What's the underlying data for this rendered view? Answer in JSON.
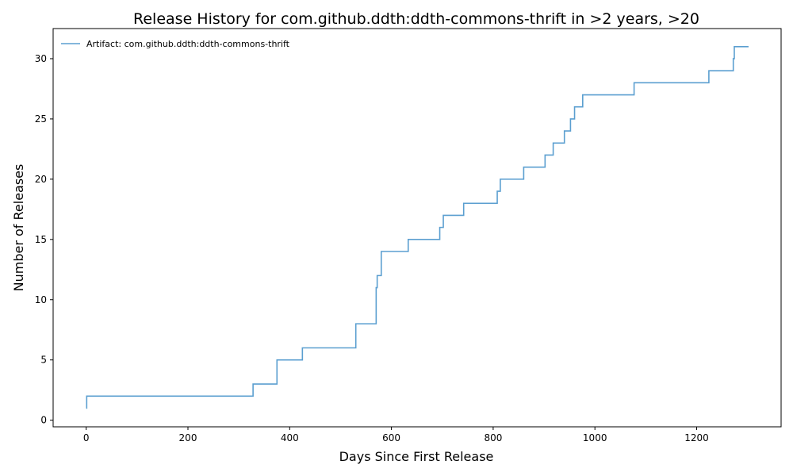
{
  "chart_data": {
    "type": "line",
    "drawstyle": "steps-post",
    "title": "Release History for com.github.ddth:ddth-commons-thrift in >2 years, >20",
    "xlabel": "Days Since First Release",
    "ylabel": "Number of Releases",
    "xlim": [
      -65,
      1366
    ],
    "ylim": [
      -0.55,
      32.5
    ],
    "xticks": [
      0,
      200,
      400,
      600,
      800,
      1000,
      1200
    ],
    "yticks": [
      0,
      5,
      10,
      15,
      20,
      25,
      30
    ],
    "grid": false,
    "legend_position": "top-left",
    "series": [
      {
        "name": "Artifact: com.github.ddth:ddth-commons-thrift",
        "color": "#5b9fd0",
        "x": [
          0,
          1,
          328,
          375,
          425,
          530,
          570,
          572,
          580,
          633,
          695,
          698,
          702,
          742,
          808,
          812,
          814,
          860,
          902,
          912,
          918,
          940,
          952,
          956,
          960,
          976,
          1077,
          1224,
          1272,
          1274,
          1302
        ],
        "y": [
          1,
          2,
          3,
          5,
          6,
          8,
          11,
          12,
          14,
          15,
          16,
          16,
          17,
          18,
          19,
          19,
          20,
          21,
          22,
          22,
          23,
          24,
          25,
          25,
          26,
          27,
          28,
          29,
          30,
          31,
          31
        ]
      }
    ]
  }
}
